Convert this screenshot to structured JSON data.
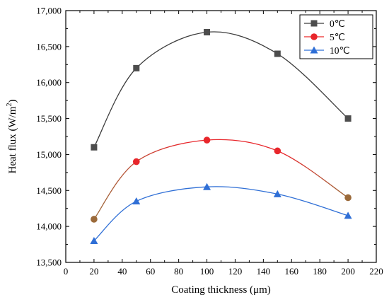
{
  "chart_data": {
    "type": "line",
    "xlabel": "Coating thickness (μm)",
    "ylabel": "Heat flux (W/m",
    "ylabel_sup": "2",
    "ylabel_close": ")",
    "xlim": [
      0,
      220
    ],
    "ylim": [
      13500,
      17000
    ],
    "xticks": [
      0,
      20,
      40,
      60,
      80,
      100,
      120,
      140,
      160,
      180,
      200,
      220
    ],
    "yticks": [
      13500,
      14000,
      14500,
      15000,
      15500,
      16000,
      16500,
      17000
    ],
    "ytick_labels": [
      "13,500",
      "14,000",
      "14,500",
      "15,000",
      "15,500",
      "16,000",
      "16,500",
      "17,000"
    ],
    "x": [
      20,
      50,
      100,
      150,
      200
    ],
    "legend_position": "top-right",
    "grid": false,
    "series": [
      {
        "name": "0℃",
        "marker": "square",
        "marker_color": "#4d4d4d",
        "line_color": "#3c3c3c",
        "values": [
          15100,
          16200,
          16700,
          16400,
          15500
        ]
      },
      {
        "name": "5℃",
        "marker": "circle",
        "marker_color": "#e8262b",
        "marker_color_alt": "#9b6a3a",
        "line_color_start": "#9b6a3a",
        "line_color_end": "#ee2a2a",
        "values": [
          14100,
          14900,
          15200,
          15050,
          14400
        ]
      },
      {
        "name": "10℃",
        "marker": "triangle",
        "marker_color": "#2f6fd6",
        "line_color": "#2f6fd6",
        "values": [
          13800,
          14350,
          14550,
          14450,
          14150
        ]
      }
    ]
  }
}
